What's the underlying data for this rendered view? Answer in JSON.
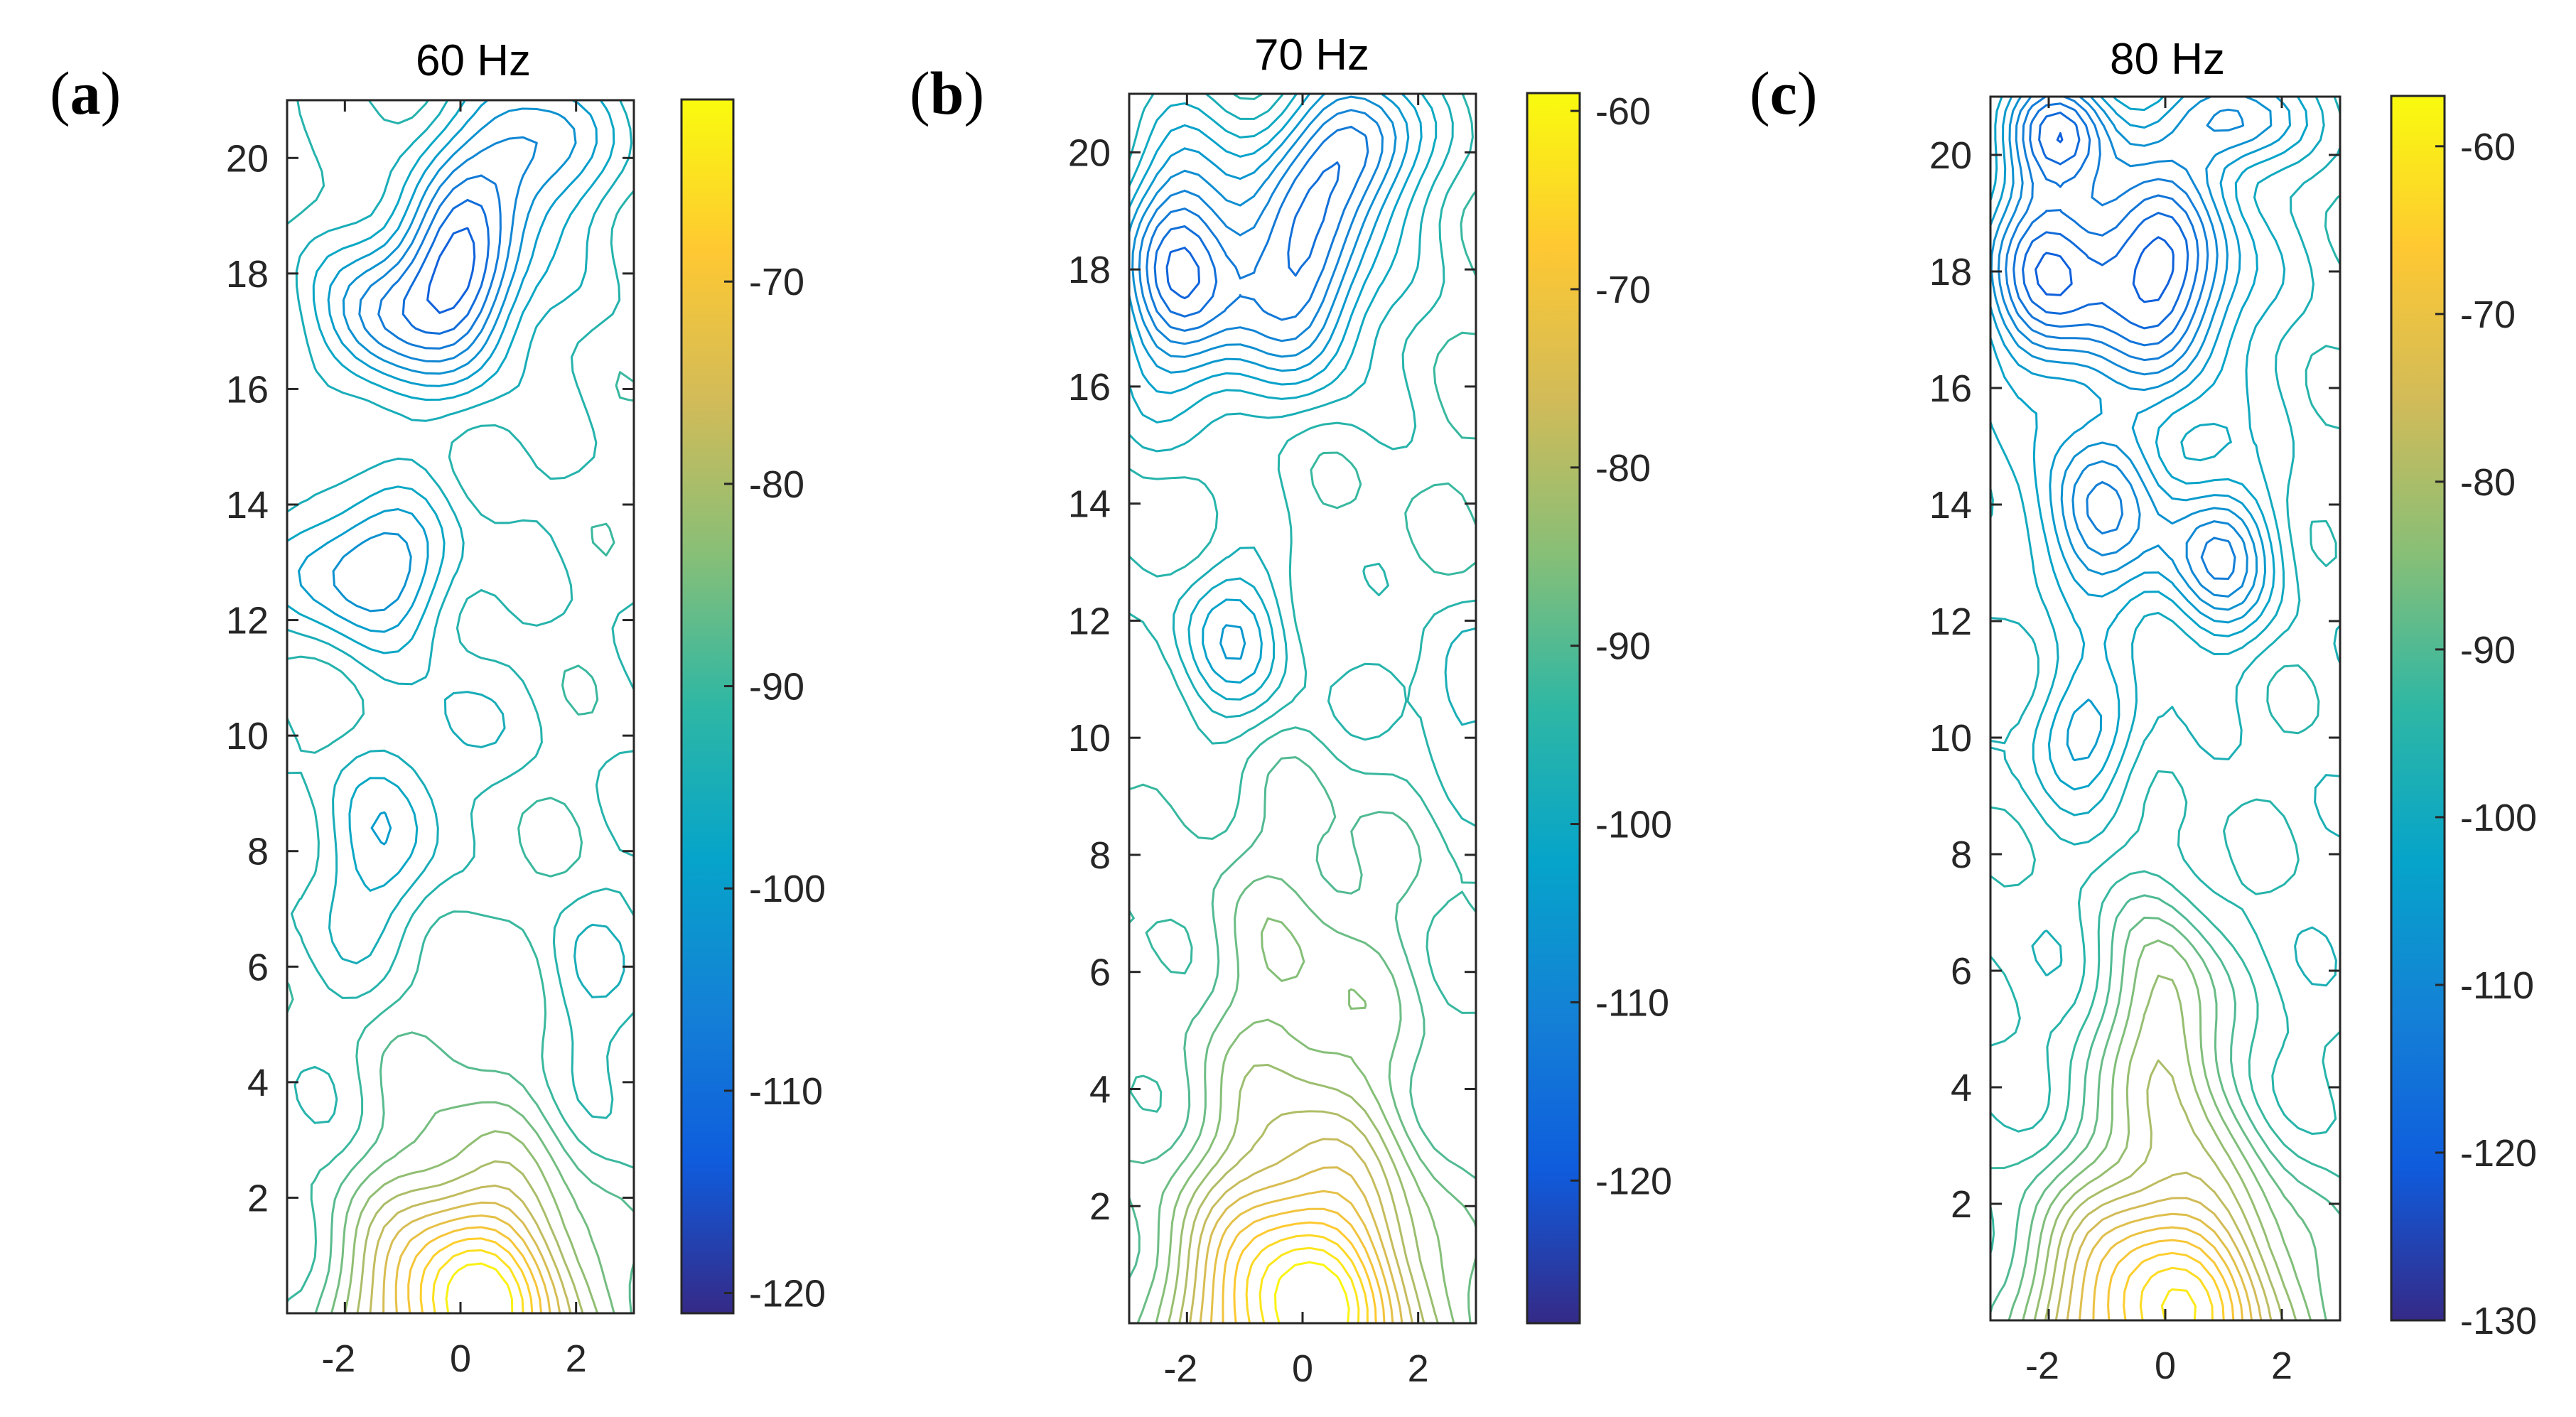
{
  "figure": {
    "description_colormap": "parula",
    "colormap_stops": [
      "#352a87",
      "#0f5cdd",
      "#1481d6",
      "#06a4ca",
      "#2eb7a4",
      "#87bf77",
      "#d1bb59",
      "#fec832",
      "#f9fb0e"
    ]
  },
  "chart_data": [
    {
      "type": "contour",
      "panel_label": "a",
      "title": "60  Hz",
      "xlabel": "",
      "ylabel": "",
      "xlim": [
        -3,
        3
      ],
      "ylim": [
        0,
        21
      ],
      "x_ticks": [
        "-2",
        "0",
        "2"
      ],
      "y_ticks": [
        "2",
        "4",
        "6",
        "8",
        "10",
        "12",
        "14",
        "16",
        "18",
        "20"
      ],
      "colorbar": {
        "range": [
          -121,
          -61
        ],
        "ticks": [
          "-70",
          "-80",
          "-90",
          "-100",
          "-110",
          "-120"
        ]
      },
      "field": {
        "background_level": -92,
        "peaks": [
          {
            "x": 0.2,
            "y": 0,
            "value": -62,
            "sx": 1.4,
            "sy": 1.6
          },
          {
            "x": 0,
            "y": 5,
            "value": -87,
            "sx": 1.2,
            "sy": 3.5
          }
        ],
        "troughs": [
          {
            "x": 0,
            "y": 18,
            "value": -113,
            "sx": 0.8,
            "sy": 1.2
          },
          {
            "x": -1.5,
            "y": 17.2,
            "value": -104,
            "sx": 0.7,
            "sy": 1.0
          },
          {
            "x": 1.2,
            "y": 20.2,
            "value": -106,
            "sx": 0.9,
            "sy": 0.9
          },
          {
            "x": -1.6,
            "y": 12.9,
            "value": -106,
            "sx": 1.0,
            "sy": 0.9
          },
          {
            "x": -1.2,
            "y": 7.9,
            "value": -101,
            "sx": 0.8,
            "sy": 1.3
          },
          {
            "x": 0,
            "y": 10,
            "value": -97,
            "sx": 0.6,
            "sy": 1.0
          },
          {
            "x": 2,
            "y": 5.8,
            "value": -96,
            "sx": 0.6,
            "sy": 1.0
          }
        ]
      }
    },
    {
      "type": "contour",
      "panel_label": "b",
      "title": "70  Hz",
      "xlabel": "",
      "ylabel": "",
      "xlim": [
        -3,
        3
      ],
      "ylim": [
        0,
        21
      ],
      "x_ticks": [
        "-2",
        "0",
        "2"
      ],
      "y_ticks": [
        "2",
        "4",
        "6",
        "8",
        "10",
        "12",
        "14",
        "16",
        "18",
        "20"
      ],
      "colorbar": {
        "range": [
          -128,
          -59
        ],
        "ticks": [
          "-60",
          "-70",
          "-80",
          "-90",
          "-100",
          "-110",
          "-120"
        ]
      },
      "field": {
        "background_level": -93,
        "peaks": [
          {
            "x": 0,
            "y": 0,
            "value": -60,
            "sx": 1.5,
            "sy": 1.8
          },
          {
            "x": 0,
            "y": 4.5,
            "value": -84,
            "sx": 1.3,
            "sy": 3.0
          }
        ],
        "troughs": [
          {
            "x": 0,
            "y": 18,
            "value": -114,
            "sx": 0.9,
            "sy": 1.4
          },
          {
            "x": -2.1,
            "y": 18,
            "value": -116,
            "sx": 0.8,
            "sy": 1.6
          },
          {
            "x": 1.0,
            "y": 20.2,
            "value": -112,
            "sx": 0.8,
            "sy": 0.9
          },
          {
            "x": -1.2,
            "y": 11.7,
            "value": -104,
            "sx": 0.8,
            "sy": 1.1
          },
          {
            "x": 2.7,
            "y": 10.8,
            "value": -99,
            "sx": 0.6,
            "sy": 1.0
          },
          {
            "x": 1.3,
            "y": 10.8,
            "value": -96,
            "sx": 0.6,
            "sy": 0.6
          }
        ]
      }
    },
    {
      "type": "contour",
      "panel_label": "c",
      "title": "80  Hz",
      "xlabel": "",
      "ylabel": "",
      "xlim": [
        -3,
        3
      ],
      "ylim": [
        0,
        21
      ],
      "x_ticks": [
        "-2",
        "0",
        "2"
      ],
      "y_ticks": [
        "2",
        "4",
        "6",
        "8",
        "10",
        "12",
        "14",
        "16",
        "18",
        "20"
      ],
      "colorbar": {
        "range": [
          -130,
          -57
        ],
        "ticks": [
          "-60",
          "-70",
          "-80",
          "-90",
          "-100",
          "-110",
          "-120",
          "-130"
        ]
      },
      "field": {
        "background_level": -96,
        "peaks": [
          {
            "x": 0,
            "y": 0,
            "value": -60,
            "sx": 1.6,
            "sy": 1.9
          },
          {
            "x": 0,
            "y": 5,
            "value": -80,
            "sx": 0.7,
            "sy": 1.6
          }
        ],
        "troughs": [
          {
            "x": 0,
            "y": 18,
            "value": -120,
            "sx": 0.9,
            "sy": 1.4
          },
          {
            "x": -2,
            "y": 18,
            "value": -118,
            "sx": 0.8,
            "sy": 1.3
          },
          {
            "x": -1.2,
            "y": 13.8,
            "value": -112,
            "sx": 0.8,
            "sy": 1.2
          },
          {
            "x": 0.9,
            "y": 13.1,
            "value": -112,
            "sx": 0.7,
            "sy": 1.0
          },
          {
            "x": -1.4,
            "y": 10.1,
            "value": -106,
            "sx": 0.7,
            "sy": 0.8
          },
          {
            "x": -1.8,
            "y": 20.5,
            "value": -114,
            "sx": 0.7,
            "sy": 0.7
          },
          {
            "x": 1.2,
            "y": 20.6,
            "value": -110,
            "sx": 0.8,
            "sy": 0.6
          }
        ]
      }
    }
  ]
}
